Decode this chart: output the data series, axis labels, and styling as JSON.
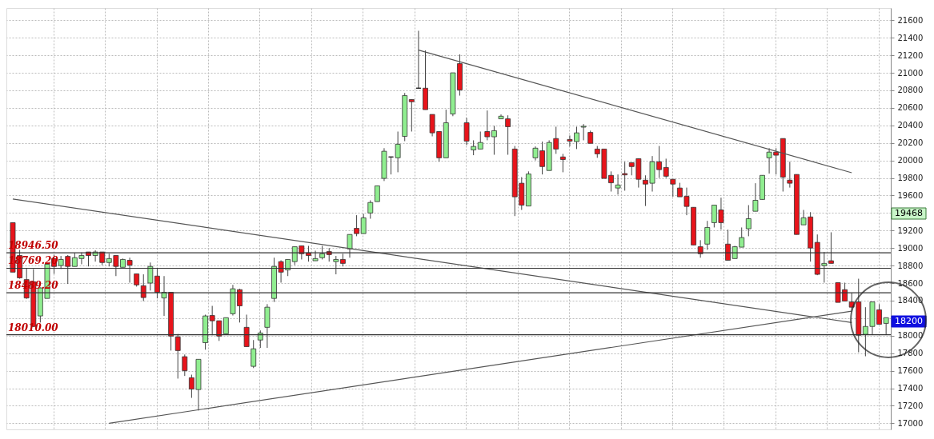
{
  "chart_data": {
    "type": "candlestick",
    "categories": [
      null,
      null,
      null,
      null,
      null,
      null,
      null,
      null,
      null,
      null,
      null,
      null,
      null,
      null,
      null,
      null,
      null,
      null,
      null,
      null,
      null,
      null,
      null,
      null,
      null,
      null,
      null,
      null,
      null,
      null,
      null,
      null,
      null,
      null,
      null,
      null,
      null,
      null,
      null,
      null,
      null,
      null,
      null,
      null,
      null,
      null,
      null,
      null,
      null,
      null,
      null,
      null,
      null,
      null,
      null,
      null,
      null,
      null,
      null,
      null,
      null,
      null,
      null,
      null,
      null,
      null,
      null,
      null,
      null,
      null,
      null,
      null,
      null,
      null,
      null,
      null,
      null,
      null,
      null,
      null,
      null,
      null,
      null,
      null,
      null,
      null,
      null,
      null,
      null,
      null,
      null,
      null,
      null,
      null,
      null,
      null,
      null,
      null,
      null,
      null,
      null,
      null,
      null,
      null,
      null,
      null,
      null,
      null,
      null,
      null,
      null,
      null,
      null,
      null,
      null,
      null,
      null,
      null,
      null,
      null,
      null,
      null,
      null,
      null,
      null,
      null,
      null,
      null
    ],
    "ohlc": [
      [
        19290,
        19290,
        18725,
        18725
      ],
      [
        18915,
        18980,
        18650,
        18660
      ],
      [
        18640,
        18770,
        18420,
        18430
      ],
      [
        18615,
        18760,
        18100,
        18105
      ],
      [
        18225,
        18550,
        18150,
        18545
      ],
      [
        18425,
        18815,
        18425,
        18815
      ],
      [
        18880,
        18925,
        18705,
        18790
      ],
      [
        18800,
        18910,
        18760,
        18870
      ],
      [
        18905,
        18920,
        18590,
        18790
      ],
      [
        18790,
        18945,
        18790,
        18890
      ],
      [
        18880,
        18950,
        18815,
        18915
      ],
      [
        18955,
        18955,
        18790,
        18915
      ],
      [
        18915,
        18975,
        18845,
        18955
      ],
      [
        18955,
        18955,
        18805,
        18835
      ],
      [
        18835,
        18935,
        18790,
        18880
      ],
      [
        18915,
        18915,
        18680,
        18790
      ],
      [
        18780,
        18880,
        18780,
        18870
      ],
      [
        18860,
        18890,
        18605,
        18805
      ],
      [
        18705,
        18705,
        18560,
        18580
      ],
      [
        18570,
        18700,
        18395,
        18435
      ],
      [
        18600,
        18835,
        18515,
        18790
      ],
      [
        18680,
        18770,
        18425,
        18495
      ],
      [
        18430,
        18680,
        18225,
        18495
      ],
      [
        18495,
        18495,
        17830,
        17995
      ],
      [
        17985,
        18020,
        17510,
        17830
      ],
      [
        17760,
        17785,
        17540,
        17600
      ],
      [
        17520,
        17555,
        17290,
        17390
      ],
      [
        17385,
        17730,
        17145,
        17730
      ],
      [
        17920,
        18240,
        17840,
        18225
      ],
      [
        18230,
        18340,
        18005,
        18170
      ],
      [
        18170,
        18170,
        17940,
        17995
      ],
      [
        18020,
        18205,
        18020,
        18205
      ],
      [
        18250,
        18580,
        18230,
        18535
      ],
      [
        18525,
        18535,
        18150,
        18340
      ],
      [
        18095,
        18240,
        17875,
        17875
      ],
      [
        17650,
        17950,
        17630,
        17850
      ],
      [
        17950,
        18060,
        17860,
        18030
      ],
      [
        18095,
        18360,
        17860,
        18325
      ],
      [
        18425,
        18890,
        18385,
        18790
      ],
      [
        18845,
        18860,
        18605,
        18725
      ],
      [
        18750,
        18870,
        18680,
        18870
      ],
      [
        18845,
        19015,
        18805,
        19015
      ],
      [
        19025,
        19025,
        18870,
        18935
      ],
      [
        18945,
        19025,
        18845,
        18915
      ],
      [
        18855,
        18970,
        18855,
        18880
      ],
      [
        18890,
        19025,
        18870,
        18935
      ],
      [
        18960,
        19000,
        18845,
        18925
      ],
      [
        18845,
        18910,
        18700,
        18870
      ],
      [
        18870,
        18935,
        18790,
        18825
      ],
      [
        18990,
        19155,
        18890,
        19155
      ],
      [
        19225,
        19375,
        19135,
        19165
      ],
      [
        19165,
        19390,
        19165,
        19345
      ],
      [
        19400,
        19545,
        19335,
        19520
      ],
      [
        19530,
        19710,
        19530,
        19710
      ],
      [
        19795,
        20140,
        19765,
        20105
      ],
      [
        20040,
        20040,
        19840,
        20040
      ],
      [
        20030,
        20330,
        19865,
        20185
      ],
      [
        20275,
        20770,
        20220,
        20740
      ],
      [
        20695,
        20695,
        20330,
        20670
      ],
      [
        20825,
        21480,
        20825,
        20825
      ],
      [
        20825,
        21255,
        20580,
        20580
      ],
      [
        20525,
        20525,
        20275,
        20315
      ],
      [
        20330,
        20330,
        19985,
        20030
      ],
      [
        20030,
        20580,
        20030,
        20430
      ],
      [
        20530,
        21000,
        20505,
        21000
      ],
      [
        21105,
        21210,
        20740,
        20805
      ],
      [
        20430,
        20485,
        20175,
        20220
      ],
      [
        20120,
        20230,
        20060,
        20160
      ],
      [
        20130,
        20330,
        20130,
        20205
      ],
      [
        20330,
        20570,
        20230,
        20270
      ],
      [
        20270,
        20395,
        20065,
        20340
      ],
      [
        20475,
        20525,
        20475,
        20505
      ],
      [
        20475,
        20515,
        20065,
        20385
      ],
      [
        20130,
        20165,
        19365,
        19585
      ],
      [
        19740,
        19810,
        19435,
        19490
      ],
      [
        19480,
        19875,
        19480,
        19845
      ],
      [
        20030,
        20160,
        20000,
        20140
      ],
      [
        20110,
        20215,
        19840,
        19930
      ],
      [
        19885,
        20230,
        19885,
        20205
      ],
      [
        20250,
        20385,
        20075,
        20130
      ],
      [
        20040,
        20075,
        19865,
        20010
      ],
      [
        20240,
        20285,
        20160,
        20220
      ],
      [
        20215,
        20385,
        20130,
        20315
      ],
      [
        20380,
        20415,
        20230,
        20390
      ],
      [
        20320,
        20340,
        20195,
        20195
      ],
      [
        20130,
        20165,
        20030,
        20075
      ],
      [
        20130,
        20130,
        19795,
        19795
      ],
      [
        19830,
        19875,
        19645,
        19745
      ],
      [
        19685,
        19840,
        19610,
        19720
      ],
      [
        19850,
        19985,
        19655,
        19835
      ],
      [
        19975,
        19975,
        19830,
        19930
      ],
      [
        20020,
        20020,
        19690,
        19785
      ],
      [
        19775,
        19830,
        19480,
        19730
      ],
      [
        19740,
        20050,
        19645,
        19985
      ],
      [
        19985,
        20165,
        19800,
        19895
      ],
      [
        19920,
        20020,
        19800,
        19820
      ],
      [
        19785,
        19785,
        19585,
        19730
      ],
      [
        19685,
        19745,
        19585,
        19585
      ],
      [
        19590,
        19690,
        19375,
        19475
      ],
      [
        19465,
        19465,
        19035,
        19035
      ],
      [
        19015,
        19090,
        18890,
        18935
      ],
      [
        19045,
        19310,
        18980,
        19235
      ],
      [
        19290,
        19490,
        19235,
        19490
      ],
      [
        19435,
        19575,
        19210,
        19290
      ],
      [
        19045,
        19210,
        18860,
        18860
      ],
      [
        18880,
        19025,
        18880,
        19015
      ],
      [
        19010,
        19235,
        19010,
        19120
      ],
      [
        19220,
        19490,
        19135,
        19335
      ],
      [
        19420,
        19740,
        19420,
        19545
      ],
      [
        19555,
        19830,
        19555,
        19830
      ],
      [
        20030,
        20140,
        19850,
        20095
      ],
      [
        20095,
        20140,
        19840,
        20060
      ],
      [
        20250,
        20250,
        19645,
        19810
      ],
      [
        19775,
        19985,
        19690,
        19740
      ],
      [
        19840,
        19840,
        19155,
        19155
      ],
      [
        19265,
        19435,
        19265,
        19345
      ],
      [
        19355,
        19410,
        18845,
        19000
      ],
      [
        19065,
        19155,
        18690,
        18700
      ],
      [
        18800,
        18955,
        18605,
        18825
      ],
      [
        18855,
        19180,
        18825,
        18825
      ],
      [
        18605,
        18605,
        18380,
        18380
      ],
      [
        18525,
        18605,
        18395,
        18395
      ],
      [
        18385,
        18490,
        18285,
        18325
      ],
      [
        18385,
        18650,
        17810,
        18005
      ],
      [
        18015,
        18325,
        17765,
        18105
      ],
      [
        18105,
        18385,
        18015,
        18385
      ],
      [
        18295,
        18360,
        18130,
        18130
      ],
      [
        18140,
        18205,
        18015,
        18205
      ]
    ],
    "colors": [
      "#e8141b",
      "#e8141b",
      "#e8141b",
      "#e8141b",
      "#90ee90",
      "#90ee90",
      "#e8141b",
      "#90ee90",
      "#e8141b",
      "#90ee90",
      "#90ee90",
      "#e8141b",
      "#90ee90",
      "#e8141b",
      "#90ee90",
      "#e8141b",
      "#90ee90",
      "#e8141b",
      "#e8141b",
      "#e8141b",
      "#90ee90",
      "#e8141b",
      "#90ee90",
      "#e8141b",
      "#e8141b",
      "#e8141b",
      "#e8141b",
      "#90ee90",
      "#90ee90",
      "#e8141b",
      "#e8141b",
      "#90ee90",
      "#90ee90",
      "#e8141b",
      "#e8141b",
      "#90ee90",
      "#90ee90",
      "#90ee90",
      "#90ee90",
      "#e8141b",
      "#90ee90",
      "#90ee90",
      "#e8141b",
      "#e8141b",
      "#90ee90",
      "#90ee90",
      "#e8141b",
      "#90ee90",
      "#e8141b",
      "#90ee90",
      "#e8141b",
      "#90ee90",
      "#90ee90",
      "#90ee90",
      "#90ee90",
      "#000000",
      "#90ee90",
      "#90ee90",
      "#e8141b",
      "#000000",
      "#e8141b",
      "#e8141b",
      "#e8141b",
      "#90ee90",
      "#90ee90",
      "#e8141b",
      "#e8141b",
      "#90ee90",
      "#90ee90",
      "#e8141b",
      "#90ee90",
      "#90ee90",
      "#e8141b",
      "#e8141b",
      "#e8141b",
      "#90ee90",
      "#90ee90",
      "#e8141b",
      "#90ee90",
      "#e8141b",
      "#e8141b",
      "#e8141b",
      "#90ee90",
      "#90ee90",
      "#e8141b",
      "#e8141b",
      "#e8141b",
      "#e8141b",
      "#90ee90",
      "#e8141b",
      "#e8141b",
      "#e8141b",
      "#e8141b",
      "#90ee90",
      "#e8141b",
      "#e8141b",
      "#e8141b",
      "#e8141b",
      "#e8141b",
      "#e8141b",
      "#e8141b",
      "#90ee90",
      "#90ee90",
      "#e8141b",
      "#e8141b",
      "#90ee90",
      "#90ee90",
      "#90ee90",
      "#90ee90",
      "#90ee90",
      "#90ee90",
      "#e8141b",
      "#e8141b",
      "#e8141b",
      "#e8141b",
      "#90ee90",
      "#e8141b",
      "#e8141b",
      "#90ee90",
      "#e8141b",
      "#e8141b",
      "#e8141b",
      "#e8141b",
      "#e8141b",
      "#90ee90",
      "#90ee90",
      "#e8141b",
      "#90ee90"
    ],
    "series": [
      {
        "type": "line",
        "color": "#555555",
        "values": [
          null,
          null,
          null,
          null,
          null,
          null,
          null,
          null,
          null,
          null,
          null,
          null,
          null,
          null,
          null,
          null,
          null,
          null,
          null,
          null,
          null,
          null,
          null,
          null,
          null,
          null,
          null,
          null,
          null,
          null,
          null,
          null,
          null,
          null,
          null,
          null,
          null,
          null,
          null,
          null,
          null,
          null,
          null,
          null,
          null,
          null,
          null,
          null,
          null,
          null,
          null,
          null,
          null,
          null,
          null,
          null,
          null,
          null,
          null,
          21260,
          null,
          null,
          null,
          null,
          null,
          null,
          null,
          null,
          null,
          null,
          null,
          null,
          null,
          null,
          null,
          null,
          null,
          null,
          null,
          null,
          null,
          null,
          null,
          null,
          null,
          null,
          null,
          null,
          null,
          null,
          null,
          null,
          null,
          null,
          null,
          null,
          null,
          null,
          null,
          null,
          null,
          null,
          null,
          null,
          null,
          null,
          null,
          null,
          null,
          null,
          null,
          null,
          null,
          null,
          null,
          null,
          null,
          null,
          null,
          null,
          null,
          null,
          19860,
          null,
          null,
          null,
          null,
          null
        ]
      },
      {
        "type": "line",
        "color": "#555555",
        "values": [
          19560,
          null,
          null,
          null,
          null,
          null,
          null,
          null,
          null,
          null,
          null,
          null,
          null,
          null,
          null,
          null,
          null,
          null,
          null,
          null,
          null,
          null,
          null,
          null,
          null,
          null,
          null,
          null,
          null,
          null,
          null,
          null,
          null,
          null,
          null,
          null,
          null,
          null,
          null,
          null,
          null,
          null,
          null,
          null,
          null,
          null,
          null,
          null,
          null,
          null,
          null,
          null,
          null,
          null,
          null,
          null,
          null,
          null,
          null,
          null,
          null,
          null,
          null,
          null,
          null,
          null,
          null,
          null,
          null,
          null,
          null,
          null,
          null,
          null,
          null,
          null,
          null,
          null,
          null,
          null,
          null,
          null,
          null,
          null,
          null,
          null,
          null,
          null,
          null,
          null,
          null,
          null,
          null,
          null,
          null,
          null,
          null,
          null,
          null,
          null,
          null,
          null,
          null,
          null,
          null,
          null,
          null,
          null,
          null,
          null,
          null,
          null,
          null,
          null,
          null,
          null,
          null,
          null,
          null,
          null,
          null,
          null,
          18150,
          null,
          null,
          null,
          null,
          null
        ]
      },
      {
        "type": "line",
        "color": "#555555",
        "values": [
          null,
          null,
          null,
          null,
          null,
          null,
          null,
          null,
          null,
          null,
          null,
          null,
          null,
          null,
          17000,
          null,
          null,
          null,
          null,
          null,
          null,
          null,
          null,
          null,
          null,
          null,
          null,
          null,
          null,
          null,
          null,
          null,
          null,
          null,
          null,
          null,
          null,
          null,
          null,
          null,
          null,
          null,
          null,
          null,
          null,
          null,
          null,
          null,
          null,
          null,
          null,
          null,
          null,
          null,
          null,
          null,
          null,
          null,
          null,
          null,
          null,
          null,
          null,
          null,
          null,
          null,
          null,
          null,
          null,
          null,
          null,
          null,
          null,
          null,
          null,
          null,
          null,
          null,
          null,
          null,
          null,
          null,
          null,
          null,
          null,
          null,
          null,
          null,
          null,
          null,
          null,
          null,
          null,
          null,
          null,
          null,
          null,
          null,
          null,
          null,
          null,
          null,
          null,
          null,
          null,
          null,
          null,
          null,
          null,
          null,
          null,
          null,
          null,
          null,
          null,
          null,
          null,
          null,
          null,
          null,
          null,
          null,
          18280,
          null,
          null,
          null,
          null,
          null
        ]
      }
    ],
    "ylim": [
      16930,
      21740
    ],
    "yticks": [
      17000,
      17200,
      17400,
      17600,
      17800,
      18000,
      {
        "value": 18200,
        "label": null
      },
      18400,
      18600,
      18800,
      19000,
      19200,
      {
        "value": 19400,
        "label": null
      },
      19600,
      19800,
      20000,
      20200,
      20400,
      20600,
      20800,
      21000,
      21200,
      21400,
      21600
    ],
    "grid": true,
    "tick_labels": "y",
    "ref_lines": [
      {
        "axis": "y",
        "value": 18946.5,
        "label": "18946.50",
        "color": "#333333"
      },
      {
        "axis": "y",
        "value": 18769.2,
        "label": "18769.20",
        "color": "#333333"
      },
      {
        "axis": "y",
        "value": 18489.2,
        "label": "18489.20",
        "color": "#333333"
      },
      {
        "axis": "y",
        "value": 18010,
        "label": "18010.00",
        "color": "#333333"
      }
    ],
    "annotations": [
      "19468",
      "18200"
    ]
  }
}
